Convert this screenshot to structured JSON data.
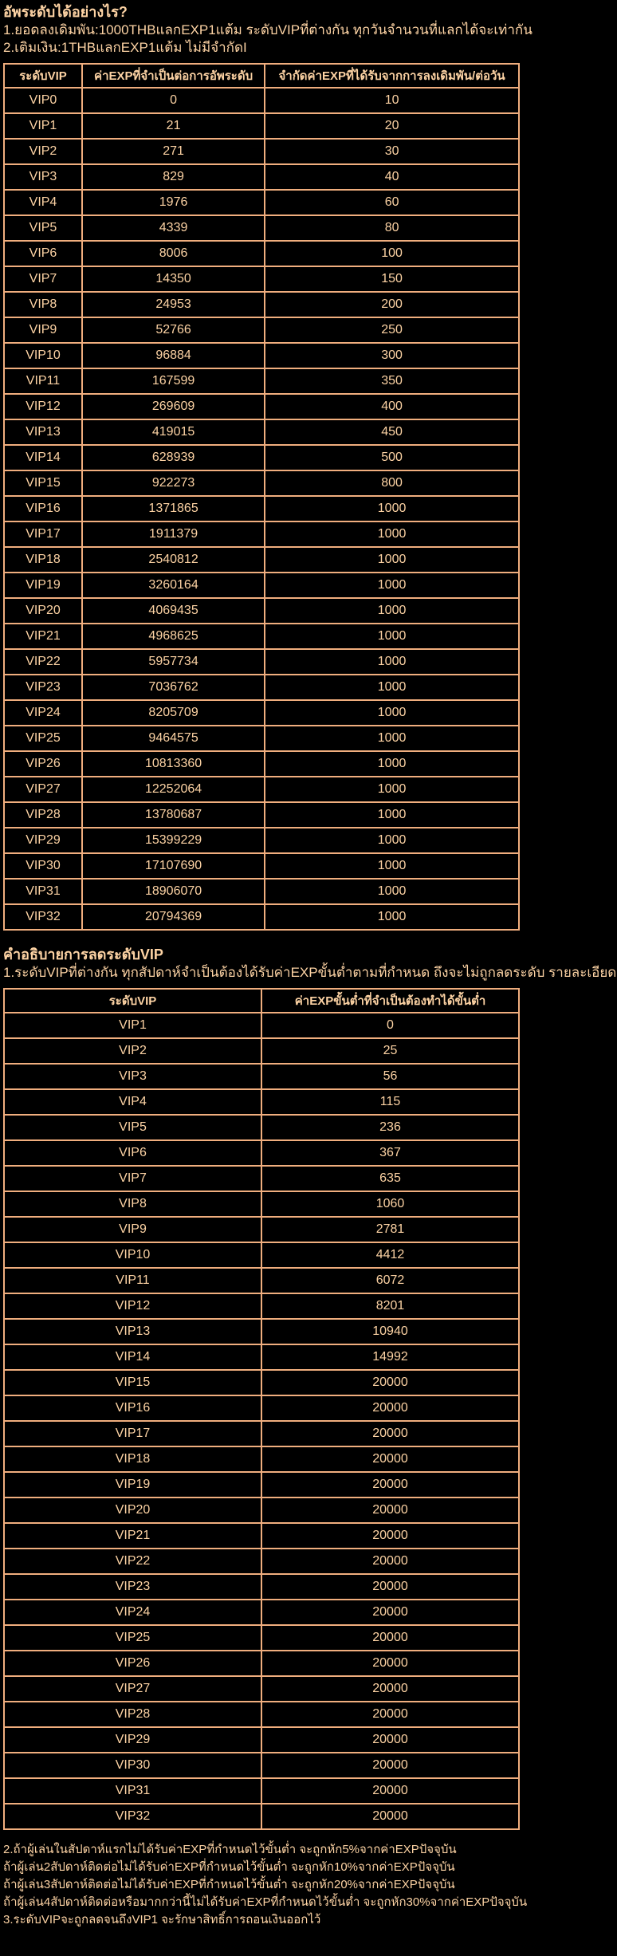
{
  "colors": {
    "background": "#000000",
    "text": "#fdd3a4",
    "table_border": "#f0ae7e"
  },
  "intro": {
    "heading": "อัพระดับได้อย่างไร?",
    "line1": "1.ยอดลงเดิมพัน:1000THBแลกEXP1แต้ม ระดับVIPที่ต่างกัน ทุกวันจำนวนที่แลกได้จะเท่ากัน",
    "line2": "2.เติมเงิน:1THBแลกEXP1แต้ม ไม่มีจำกัดI"
  },
  "upgrade_table": {
    "headers": [
      "ระดับVIP",
      "ค่าEXPที่จำเป็นต่อการอัพระดับ",
      "จำกัดค่าEXPที่ได้รับจากการลงเดิมพัน/ต่อวัน"
    ],
    "rows": [
      [
        "VIP0",
        "0",
        "10"
      ],
      [
        "VIP1",
        "21",
        "20"
      ],
      [
        "VIP2",
        "271",
        "30"
      ],
      [
        "VIP3",
        "829",
        "40"
      ],
      [
        "VIP4",
        "1976",
        "60"
      ],
      [
        "VIP5",
        "4339",
        "80"
      ],
      [
        "VIP6",
        "8006",
        "100"
      ],
      [
        "VIP7",
        "14350",
        "150"
      ],
      [
        "VIP8",
        "24953",
        "200"
      ],
      [
        "VIP9",
        "52766",
        "250"
      ],
      [
        "VIP10",
        "96884",
        "300"
      ],
      [
        "VIP11",
        "167599",
        "350"
      ],
      [
        "VIP12",
        "269609",
        "400"
      ],
      [
        "VIP13",
        "419015",
        "450"
      ],
      [
        "VIP14",
        "628939",
        "500"
      ],
      [
        "VIP15",
        "922273",
        "800"
      ],
      [
        "VIP16",
        "1371865",
        "1000"
      ],
      [
        "VIP17",
        "1911379",
        "1000"
      ],
      [
        "VIP18",
        "2540812",
        "1000"
      ],
      [
        "VIP19",
        "3260164",
        "1000"
      ],
      [
        "VIP20",
        "4069435",
        "1000"
      ],
      [
        "VIP21",
        "4968625",
        "1000"
      ],
      [
        "VIP22",
        "5957734",
        "1000"
      ],
      [
        "VIP23",
        "7036762",
        "1000"
      ],
      [
        "VIP24",
        "8205709",
        "1000"
      ],
      [
        "VIP25",
        "9464575",
        "1000"
      ],
      [
        "VIP26",
        "10813360",
        "1000"
      ],
      [
        "VIP27",
        "12252064",
        "1000"
      ],
      [
        "VIP28",
        "13780687",
        "1000"
      ],
      [
        "VIP29",
        "15399229",
        "1000"
      ],
      [
        "VIP30",
        "17107690",
        "1000"
      ],
      [
        "VIP31",
        "18906070",
        "1000"
      ],
      [
        "VIP32",
        "20794369",
        "1000"
      ]
    ]
  },
  "demote_section": {
    "heading": "คำอธิบายการลดระดับVIP",
    "line1": "1.ระดับVIPที่ต่างกัน ทุกสัปดาห์จำเป็นต้องได้รับค่าEXPขั้นต่ำตามที่กำหนด ถึงจะไม่ถูกลดระดับ รายละเอียดดังนี้"
  },
  "demote_table": {
    "headers": [
      "ระดับVIP",
      "ค่าEXPขั้นต่ำที่จำเป็นต้องทำได้ขั้นต่ำ"
    ],
    "rows": [
      [
        "VIP1",
        "0"
      ],
      [
        "VIP2",
        "25"
      ],
      [
        "VIP3",
        "56"
      ],
      [
        "VIP4",
        "115"
      ],
      [
        "VIP5",
        "236"
      ],
      [
        "VIP6",
        "367"
      ],
      [
        "VIP7",
        "635"
      ],
      [
        "VIP8",
        "1060"
      ],
      [
        "VIP9",
        "2781"
      ],
      [
        "VIP10",
        "4412"
      ],
      [
        "VIP11",
        "6072"
      ],
      [
        "VIP12",
        "8201"
      ],
      [
        "VIP13",
        "10940"
      ],
      [
        "VIP14",
        "14992"
      ],
      [
        "VIP15",
        "20000"
      ],
      [
        "VIP16",
        "20000"
      ],
      [
        "VIP17",
        "20000"
      ],
      [
        "VIP18",
        "20000"
      ],
      [
        "VIP19",
        "20000"
      ],
      [
        "VIP20",
        "20000"
      ],
      [
        "VIP21",
        "20000"
      ],
      [
        "VIP22",
        "20000"
      ],
      [
        "VIP23",
        "20000"
      ],
      [
        "VIP24",
        "20000"
      ],
      [
        "VIP25",
        "20000"
      ],
      [
        "VIP26",
        "20000"
      ],
      [
        "VIP27",
        "20000"
      ],
      [
        "VIP28",
        "20000"
      ],
      [
        "VIP29",
        "20000"
      ],
      [
        "VIP30",
        "20000"
      ],
      [
        "VIP31",
        "20000"
      ],
      [
        "VIP32",
        "20000"
      ]
    ]
  },
  "footer": {
    "lines": [
      "2.ถ้าผู้เล่นในสัปดาห์แรกไม่ได้รับค่าEXPที่กำหนดไว้ขั้นต่ำ จะถูกหัก5%จากค่าEXPปัจจุบัน",
      "ถ้าผู้เล่น2สัปดาห์ติดต่อไม่ได้รับค่าEXPที่กำหนดไว้ขั้นต่ำ จะถูกหัก10%จากค่าEXPปัจจุบัน",
      "ถ้าผู้เล่น3สัปดาห์ติดต่อไม่ได้รับค่าEXPที่กำหนดไว้ขั้นต่ำ จะถูกหัก20%จากค่าEXPปัจจุบัน",
      "ถ้าผู้เล่น4สัปดาห์ติดต่อหรือมากกว่านี้ไม่ได้รับค่าEXPที่กำหนดไว้ขั้นต่ำ จะถูกหัก30%จากค่าEXPปัจจุบัน",
      "3.ระดับVIPจะถูกลดจนถึงVIP1 จะรักษาสิทธิ์การถอนเงินออกไว้"
    ]
  }
}
